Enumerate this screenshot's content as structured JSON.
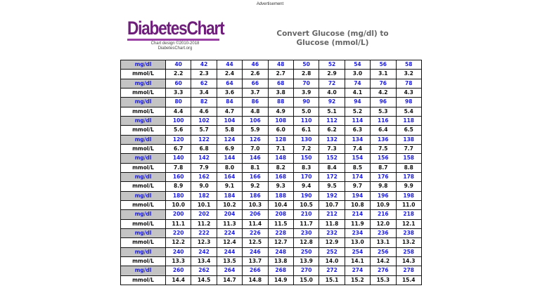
{
  "advertisement_label": "Advertisement",
  "logo": {
    "wordmark": "DiabetesChart",
    "credit_line_1": "Chart design ©2010-2018",
    "credit_line_2": "DiabetesChart.org"
  },
  "title": {
    "line_1": "Convert Glucose (mg/dl) to",
    "line_2": "Glucose (mmol/L)"
  },
  "colors": {
    "logo_purple": "#6d1f7a",
    "mgdl_value_blue": "#1c1ce6",
    "header_cell_gray": "#c4c4c4"
  },
  "table": {
    "mgdl_label": "mg/dl",
    "mmol_label": "mmol/L",
    "blocks": [
      {
        "mgdl": [
          "40",
          "42",
          "44",
          "46",
          "48",
          "50",
          "52",
          "54",
          "56",
          "58"
        ],
        "mmol": [
          "2.2",
          "2.3",
          "2.4",
          "2.6",
          "2.7",
          "2.8",
          "2.9",
          "3.0",
          "3.1",
          "3.2"
        ]
      },
      {
        "mgdl": [
          "60",
          "62",
          "64",
          "66",
          "68",
          "70",
          "72",
          "74",
          "76",
          "78"
        ],
        "mmol": [
          "3.3",
          "3.4",
          "3.6",
          "3.7",
          "3.8",
          "3.9",
          "4.0",
          "4.1",
          "4.2",
          "4.3"
        ]
      },
      {
        "mgdl": [
          "80",
          "82",
          "84",
          "86",
          "88",
          "90",
          "92",
          "94",
          "96",
          "98"
        ],
        "mmol": [
          "4.4",
          "4.6",
          "4.7",
          "4.8",
          "4.9",
          "5.0",
          "5.1",
          "5.2",
          "5.3",
          "5.4"
        ]
      },
      {
        "mgdl": [
          "100",
          "102",
          "104",
          "106",
          "108",
          "110",
          "112",
          "114",
          "116",
          "118"
        ],
        "mmol": [
          "5.6",
          "5.7",
          "5.8",
          "5.9",
          "6.0",
          "6.1",
          "6.2",
          "6.3",
          "6.4",
          "6.5"
        ]
      },
      {
        "mgdl": [
          "120",
          "122",
          "124",
          "126",
          "128",
          "130",
          "132",
          "134",
          "136",
          "138"
        ],
        "mmol": [
          "6.7",
          "6.8",
          "6.9",
          "7.0",
          "7.1",
          "7.2",
          "7.3",
          "7.4",
          "7.5",
          "7.7"
        ]
      },
      {
        "mgdl": [
          "140",
          "142",
          "144",
          "146",
          "148",
          "150",
          "152",
          "154",
          "156",
          "158"
        ],
        "mmol": [
          "7.8",
          "7.9",
          "8.0",
          "8.1",
          "8.2",
          "8.3",
          "8.4",
          "8.5",
          "8.7",
          "8.8"
        ]
      },
      {
        "mgdl": [
          "160",
          "162",
          "164",
          "166",
          "168",
          "170",
          "172",
          "174",
          "176",
          "178"
        ],
        "mmol": [
          "8.9",
          "9.0",
          "9.1",
          "9.2",
          "9.3",
          "9.4",
          "9.5",
          "9.7",
          "9.8",
          "9.9"
        ]
      },
      {
        "mgdl": [
          "180",
          "182",
          "184",
          "186",
          "188",
          "190",
          "192",
          "194",
          "196",
          "198"
        ],
        "mmol": [
          "10.0",
          "10.1",
          "10.2",
          "10.3",
          "10.4",
          "10.5",
          "10.7",
          "10.8",
          "10.9",
          "11.0"
        ]
      },
      {
        "mgdl": [
          "200",
          "202",
          "204",
          "206",
          "208",
          "210",
          "212",
          "214",
          "216",
          "218"
        ],
        "mmol": [
          "11.1",
          "11.2",
          "11.3",
          "11.4",
          "11.5",
          "11.7",
          "11.8",
          "11.9",
          "12.0",
          "12.1"
        ]
      },
      {
        "mgdl": [
          "220",
          "222",
          "224",
          "226",
          "228",
          "230",
          "232",
          "234",
          "236",
          "238"
        ],
        "mmol": [
          "12.2",
          "12.3",
          "12.4",
          "12.5",
          "12.7",
          "12.8",
          "12.9",
          "13.0",
          "13.1",
          "13.2"
        ]
      },
      {
        "mgdl": [
          "240",
          "242",
          "244",
          "246",
          "248",
          "250",
          "252",
          "254",
          "256",
          "258"
        ],
        "mmol": [
          "13.3",
          "13.4",
          "13.5",
          "13.7",
          "13.8",
          "13.9",
          "14.0",
          "14.1",
          "14.2",
          "14.3"
        ]
      },
      {
        "mgdl": [
          "260",
          "262",
          "264",
          "266",
          "268",
          "270",
          "272",
          "274",
          "276",
          "278"
        ],
        "mmol": [
          "14.4",
          "14.5",
          "14.7",
          "14.8",
          "14.9",
          "15.0",
          "15.1",
          "15.2",
          "15.3",
          "15.4"
        ]
      }
    ]
  }
}
